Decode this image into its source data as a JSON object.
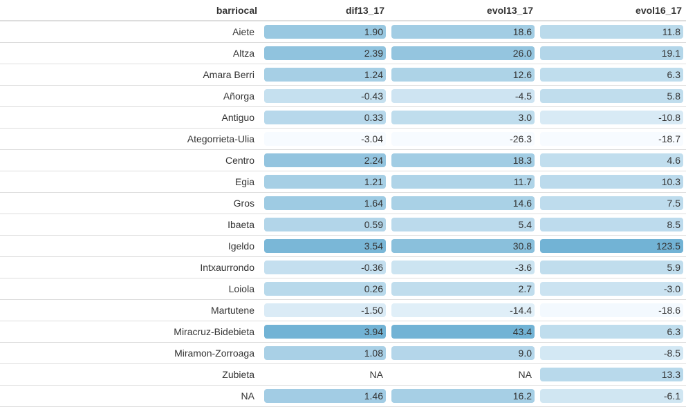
{
  "columns": [
    "barriocal",
    "dif13_17",
    "evol13_17",
    "evol16_17"
  ],
  "rows": [
    {
      "barriocal": "Aiete",
      "dif13_17": "1.90",
      "evol13_17": "18.6",
      "evol16_17": "11.8"
    },
    {
      "barriocal": "Altza",
      "dif13_17": "2.39",
      "evol13_17": "26.0",
      "evol16_17": "19.1"
    },
    {
      "barriocal": "Amara Berri",
      "dif13_17": "1.24",
      "evol13_17": "12.6",
      "evol16_17": "6.3"
    },
    {
      "barriocal": "Añorga",
      "dif13_17": "-0.43",
      "evol13_17": "-4.5",
      "evol16_17": "5.8"
    },
    {
      "barriocal": "Antiguo",
      "dif13_17": "0.33",
      "evol13_17": "3.0",
      "evol16_17": "-10.8"
    },
    {
      "barriocal": "Ategorrieta-Ulia",
      "dif13_17": "-3.04",
      "evol13_17": "-26.3",
      "evol16_17": "-18.7"
    },
    {
      "barriocal": "Centro",
      "dif13_17": "2.24",
      "evol13_17": "18.3",
      "evol16_17": "4.6"
    },
    {
      "barriocal": "Egia",
      "dif13_17": "1.21",
      "evol13_17": "11.7",
      "evol16_17": "10.3"
    },
    {
      "barriocal": "Gros",
      "dif13_17": "1.64",
      "evol13_17": "14.6",
      "evol16_17": "7.5"
    },
    {
      "barriocal": "Ibaeta",
      "dif13_17": "0.59",
      "evol13_17": "5.4",
      "evol16_17": "8.5"
    },
    {
      "barriocal": "Igeldo",
      "dif13_17": "3.54",
      "evol13_17": "30.8",
      "evol16_17": "123.5"
    },
    {
      "barriocal": "Intxaurrondo",
      "dif13_17": "-0.36",
      "evol13_17": "-3.6",
      "evol16_17": "5.9"
    },
    {
      "barriocal": "Loiola",
      "dif13_17": "0.26",
      "evol13_17": "2.7",
      "evol16_17": "-3.0"
    },
    {
      "barriocal": "Martutene",
      "dif13_17": "-1.50",
      "evol13_17": "-14.4",
      "evol16_17": "-18.6"
    },
    {
      "barriocal": "Miracruz-Bidebieta",
      "dif13_17": "3.94",
      "evol13_17": "43.4",
      "evol16_17": "6.3"
    },
    {
      "barriocal": "Miramon-Zorroaga",
      "dif13_17": "1.08",
      "evol13_17": "9.0",
      "evol16_17": "-8.5"
    },
    {
      "barriocal": "Zubieta",
      "dif13_17": "NA",
      "evol13_17": "NA",
      "evol16_17": "13.3"
    },
    {
      "barriocal": "NA",
      "dif13_17": "1.46",
      "evol13_17": "16.2",
      "evol16_17": "-6.1"
    }
  ],
  "colors": {
    "scale_low": "#f7fbff",
    "scale_high": "#2b8cbe",
    "text_dark": "#333333",
    "header_border": "#dddddd"
  }
}
